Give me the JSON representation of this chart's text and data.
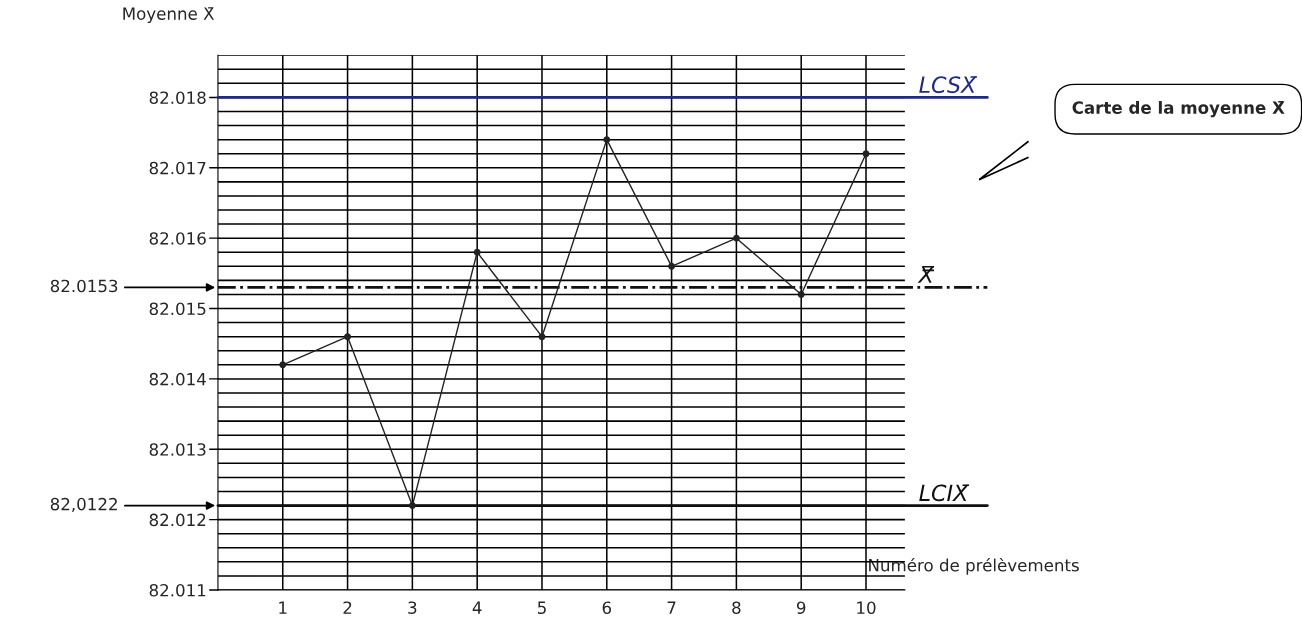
{
  "chart_data": {
    "type": "line",
    "xlabel": "Numéro de prélèvements",
    "ylabel": "Moyenne X̄",
    "x": [
      1,
      2,
      3,
      4,
      5,
      6,
      7,
      8,
      9,
      10
    ],
    "series": [
      {
        "color": "#222222",
        "values": [
          82.0142,
          82.0146,
          82.0122,
          82.0158,
          82.0146,
          82.0174,
          82.0156,
          82.016,
          82.0152,
          82.0172
        ]
      }
    ],
    "marker": "circle",
    "line_style": "solid",
    "xlim": [
      0,
      10.6
    ],
    "xticks": [
      1,
      2,
      3,
      4,
      5,
      6,
      7,
      8,
      9,
      10
    ],
    "ylim": [
      82.011,
      82.0186
    ],
    "yticks": [
      82.011,
      {
        "value": 82.0112,
        "label": null
      },
      {
        "value": 82.0114,
        "label": null
      },
      {
        "value": 82.0116,
        "label": null
      },
      {
        "value": 82.0118,
        "label": null
      },
      82.012,
      {
        "value": 82.0122,
        "label": null
      },
      {
        "value": 82.0124,
        "label": null
      },
      {
        "value": 82.0126,
        "label": null
      },
      {
        "value": 82.0128,
        "label": null
      },
      82.013,
      {
        "value": 82.0132,
        "label": null
      },
      {
        "value": 82.0134,
        "label": null
      },
      {
        "value": 82.0136,
        "label": null
      },
      {
        "value": 82.0138,
        "label": null
      },
      82.014,
      {
        "value": 82.0142,
        "label": null
      },
      {
        "value": 82.0144,
        "label": null
      },
      {
        "value": 82.0146,
        "label": null
      },
      {
        "value": 82.0148,
        "label": null
      },
      82.015,
      {
        "value": 82.0152,
        "label": null
      },
      {
        "value": 82.0154,
        "label": null
      },
      {
        "value": 82.0156,
        "label": null
      },
      {
        "value": 82.0158,
        "label": null
      },
      82.016,
      {
        "value": 82.0162,
        "label": null
      },
      {
        "value": 82.0164,
        "label": null
      },
      {
        "value": 82.0166,
        "label": null
      },
      {
        "value": 82.0168,
        "label": null
      },
      82.017,
      {
        "value": 82.0172,
        "label": null
      },
      {
        "value": 82.0174,
        "label": null
      },
      {
        "value": 82.0176,
        "label": null
      },
      {
        "value": 82.0178,
        "label": null
      },
      82.018,
      {
        "value": 82.0182,
        "label": null
      },
      {
        "value": 82.0184,
        "label": null
      },
      {
        "value": 82.0186,
        "label": null
      }
    ],
    "grid": true,
    "ref_lines": [
      {
        "axis": "y",
        "value": 82.018,
        "label": "LCSX̄",
        "color": "#1f2a80",
        "line_style": "solid"
      },
      {
        "axis": "y",
        "value": 82.0153,
        "label": "X̿",
        "color": "#111111",
        "line_style": "dashdot"
      },
      {
        "axis": "y",
        "value": 82.0122,
        "label": "LCIX̄",
        "color": "#111111",
        "line_style": "solid"
      }
    ],
    "annotations": [
      "82.0153",
      "82,0122",
      "Carte de la moyenne X̄"
    ]
  }
}
